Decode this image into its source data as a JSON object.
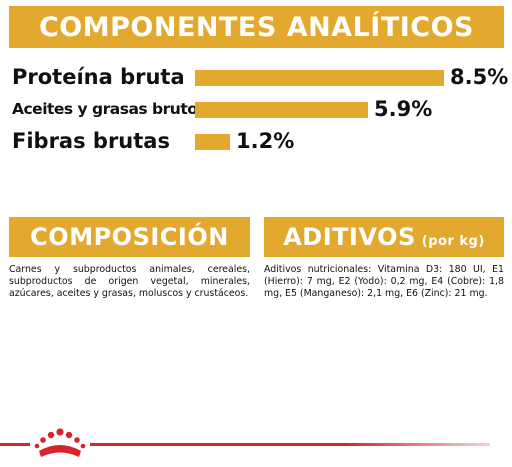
{
  "header": {
    "title": "COMPONENTES ANALÍTICOS"
  },
  "nutrients": [
    {
      "label": "Proteína bruta",
      "value": "8.5%",
      "percent": 8.5
    },
    {
      "label": "Aceites y grasas brutos",
      "value": "5.9%",
      "percent": 5.9
    },
    {
      "label": "Fibras brutas",
      "value": "1.2%",
      "percent": 1.2
    }
  ],
  "composicion": {
    "title": "COMPOSICIÓN",
    "text": "Carnes y subproductos animales, cereales, subproductos de origen vegetal, minerales, azúcares, aceites y grasas, moluscos y crustáceos."
  },
  "aditivos": {
    "title": "ADITIVOS",
    "title_suffix": "(por kg)",
    "text": "Aditivos nutricionales: Vitamina D3: 180 UI, E1 (Hierro): 7 mg, E2 (Yodo): 0,2 mg, E4 (Cobre): 1,8 mg, E5 (Manganeso): 2,1 mg, E6 (Zinc): 21 mg."
  },
  "colors": {
    "accent": "#e3a82e",
    "brand_red": "#d8232a"
  },
  "footer": {
    "logo_icon": "royal-canin-crown-icon"
  }
}
